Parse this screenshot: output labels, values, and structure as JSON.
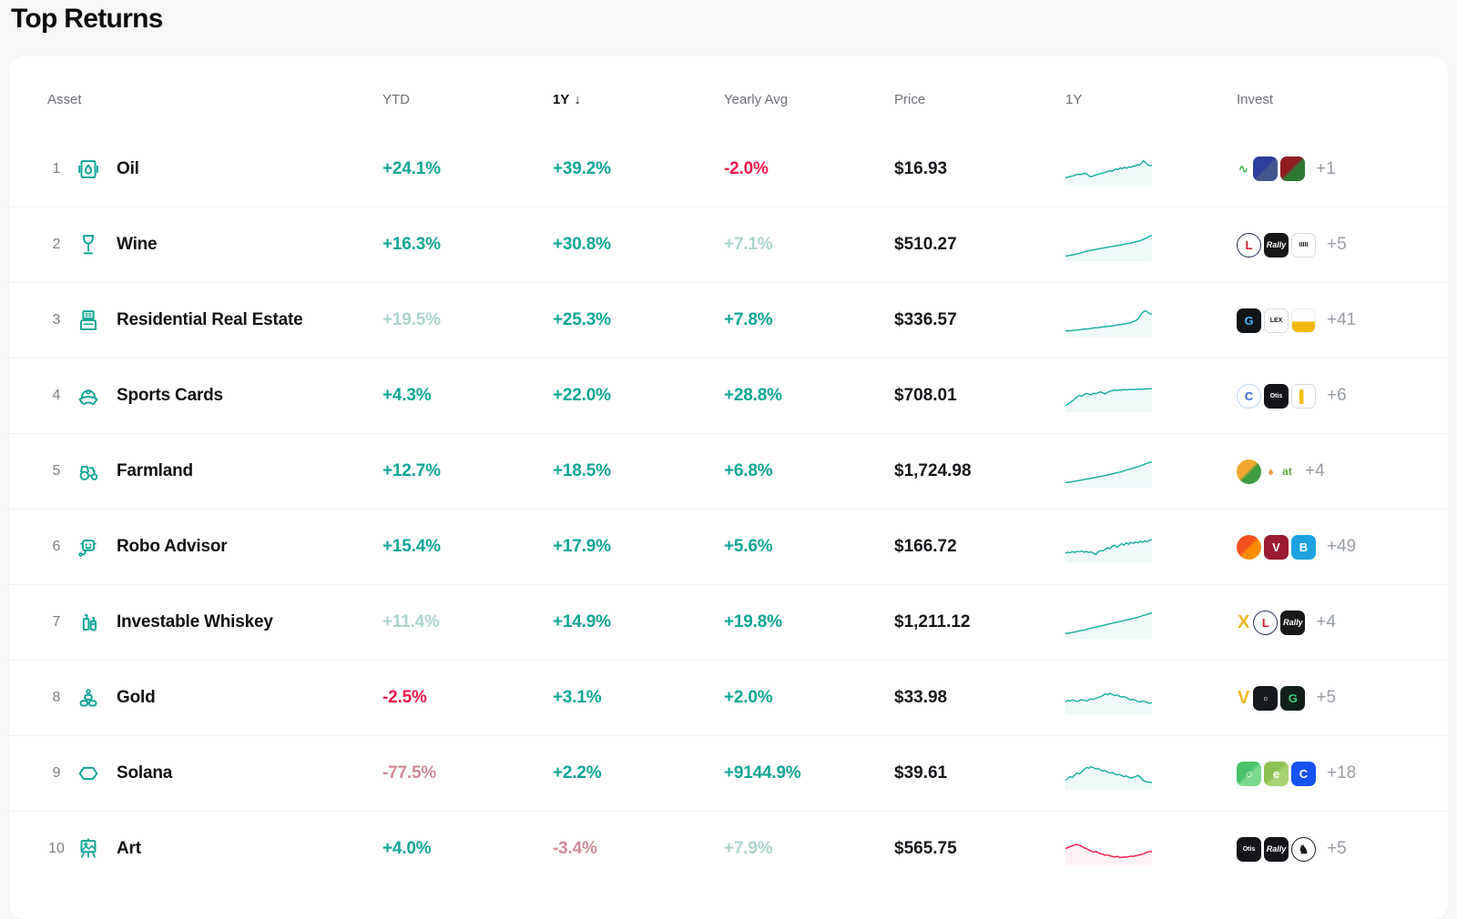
{
  "page": {
    "title": "Top Returns"
  },
  "colors": {
    "accent_positive": "#0FA594",
    "positive_muted": "#ABD4CD",
    "negative": "#F3164A",
    "negative_muted": "#CF8C96",
    "spark_up": "#12AC9C",
    "spark_down": "#F3164A"
  },
  "table": {
    "headers": {
      "asset": "Asset",
      "ytd": "YTD",
      "one_y": "1Y",
      "sort_arrow": "↓",
      "yearly_avg": "Yearly Avg",
      "price": "Price",
      "chart": "1Y",
      "invest": "Invest"
    },
    "rows": [
      {
        "rank": "1",
        "name": "Oil",
        "icon": "oil",
        "ytd": {
          "text": "+24.1%",
          "tone": "pos"
        },
        "one_y": {
          "text": "+39.2%",
          "tone": "pos"
        },
        "yearly_avg": {
          "text": "-2.0%",
          "tone": "neg"
        },
        "price": "$16.93",
        "spark": {
          "trend": "up",
          "points": [
            22,
            24,
            26,
            28,
            30,
            33,
            35,
            34,
            36,
            38,
            37,
            30,
            26,
            28,
            31,
            34,
            36,
            38,
            40,
            43,
            45,
            48,
            46,
            50,
            55,
            52,
            58,
            56,
            60,
            57,
            62,
            60,
            65,
            65,
            70,
            68,
            75,
            85,
            78,
            70,
            66,
            68
          ]
        },
        "invest": {
          "count": "+1",
          "icons": [
            {
              "name": "sparkline-logo",
              "shape": "glyph",
              "fg": "#3cb54a",
              "text": "∿",
              "font": "bold"
            },
            {
              "name": "app-icon-blue",
              "shape": "rounded",
              "bg": "#2e3e9b",
              "bg2": "#44578f",
              "fg": "#cfe04a",
              "text": ""
            },
            {
              "name": "app-icon-red-green",
              "shape": "rounded",
              "bg": "#8f1d22",
              "bg2": "#2f7a33",
              "fg": "#ffffff",
              "text": ""
            }
          ]
        }
      },
      {
        "rank": "2",
        "name": "Wine",
        "icon": "wine",
        "ytd": {
          "text": "+16.3%",
          "tone": "pos"
        },
        "one_y": {
          "text": "+30.8%",
          "tone": "pos"
        },
        "yearly_avg": {
          "text": "+7.1%",
          "tone": "pos-muted"
        },
        "price": "$510.27",
        "spark": {
          "trend": "up",
          "points": [
            12,
            13,
            15,
            16,
            18,
            20,
            22,
            25,
            27,
            30,
            32,
            33,
            35,
            36,
            38,
            40,
            41,
            43,
            44,
            46,
            47,
            49,
            50,
            52,
            53,
            55,
            57,
            58,
            60,
            62,
            64,
            66,
            68,
            72,
            76,
            80,
            85,
            88
          ]
        },
        "invest": {
          "count": "+5",
          "icons": [
            {
              "name": "vinovest-icon",
              "shape": "circle",
              "bg": "#ffffff",
              "border": "#23304f",
              "fg": "#d4222e",
              "text": "L",
              "font": "bold"
            },
            {
              "name": "rally-icon",
              "shape": "rounded",
              "bg": "#17181a",
              "fg": "#ffffff",
              "text": "Rally",
              "font": "script"
            },
            {
              "name": "vint-icon",
              "shape": "rounded",
              "bg": "#ffffff",
              "border": "#d8dbe0",
              "fg": "#17181a",
              "text": "IIIII",
              "font": "tiny"
            }
          ]
        }
      },
      {
        "rank": "3",
        "name": "Residential Real Estate",
        "icon": "building",
        "ytd": {
          "text": "+19.5%",
          "tone": "pos-muted"
        },
        "one_y": {
          "text": "+25.3%",
          "tone": "pos"
        },
        "yearly_avg": {
          "text": "+7.8%",
          "tone": "pos"
        },
        "price": "$336.57",
        "spark": {
          "trend": "up",
          "points": [
            14,
            15,
            15,
            16,
            17,
            18,
            18,
            20,
            21,
            22,
            22,
            24,
            25,
            26,
            26,
            28,
            29,
            30,
            31,
            32,
            33,
            34,
            36,
            37,
            38,
            40,
            41,
            43,
            45,
            48,
            52,
            58,
            70,
            82,
            88,
            84,
            78,
            76
          ]
        },
        "invest": {
          "count": "+41",
          "icons": [
            {
              "name": "groundfloor-icon",
              "shape": "rounded",
              "bg": "#101417",
              "fg": "#3db6f2",
              "text": "G",
              "font": "bold"
            },
            {
              "name": "lex-icon",
              "shape": "rounded",
              "bg": "#ffffff",
              "border": "#d8dbe0",
              "fg": "#17181a",
              "text": "LEX",
              "font": "tiny"
            },
            {
              "name": "realtymogul-icon",
              "shape": "rounded",
              "bg": "#ffffff",
              "bg2": "#f0b90b",
              "dir": "v",
              "border": "#eceef0",
              "fg": "#17181a",
              "text": ""
            }
          ]
        }
      },
      {
        "rank": "4",
        "name": "Sports Cards",
        "icon": "cap",
        "ytd": {
          "text": "+4.3%",
          "tone": "pos"
        },
        "one_y": {
          "text": "+22.0%",
          "tone": "pos"
        },
        "yearly_avg": {
          "text": "+28.8%",
          "tone": "pos"
        },
        "price": "$708.01",
        "spark": {
          "trend": "up",
          "points": [
            18,
            22,
            28,
            35,
            42,
            50,
            55,
            52,
            58,
            62,
            60,
            57,
            63,
            61,
            65,
            68,
            64,
            60,
            66,
            70,
            72,
            74,
            73,
            75,
            74,
            76,
            75,
            76,
            77,
            76,
            77,
            78,
            77,
            78,
            78,
            79,
            79,
            80
          ]
        },
        "invest": {
          "count": "+6",
          "icons": [
            {
              "name": "collectable-icon",
              "shape": "circle",
              "bg": "#ffffff",
              "border": "#bcd4f2",
              "fg": "#2d6bd8",
              "text": "C",
              "font": "bold"
            },
            {
              "name": "otis-icon",
              "shape": "rounded",
              "bg": "#141518",
              "fg": "#ffffff",
              "text": "Otis",
              "font": "tiny"
            },
            {
              "name": "pwcc-icon",
              "shape": "rounded",
              "bg": "#ffffff",
              "border": "#d8dbe0",
              "fg": "#f2c11d",
              "text": "▌",
              "font": "bold"
            }
          ]
        }
      },
      {
        "rank": "5",
        "name": "Farmland",
        "icon": "tractor",
        "ytd": {
          "text": "+12.7%",
          "tone": "pos"
        },
        "one_y": {
          "text": "+18.5%",
          "tone": "pos"
        },
        "yearly_avg": {
          "text": "+6.8%",
          "tone": "pos"
        },
        "price": "$1,724.98",
        "spark": {
          "trend": "up",
          "points": [
            12,
            13,
            14,
            16,
            17,
            19,
            20,
            22,
            23,
            25,
            26,
            28,
            30,
            31,
            33,
            35,
            36,
            38,
            40,
            42,
            44,
            46,
            48,
            50,
            52,
            55,
            58,
            60,
            63,
            66,
            68,
            70,
            73,
            76,
            80,
            83,
            86,
            88
          ]
        },
        "invest": {
          "count": "+4",
          "icons": [
            {
              "name": "farmtogether-icon",
              "shape": "circle",
              "bg": "#f0a92e",
              "bg2": "#3f9b42",
              "fg": "#ffffff",
              "text": ""
            },
            {
              "name": "harvest-icon",
              "shape": "glyph",
              "fg": "#eda24b",
              "text": "♦",
              "font": "bold"
            },
            {
              "name": "acretrader-icon",
              "shape": "glyph",
              "fg": "#65a844",
              "text": "at",
              "font": "boldsmall"
            }
          ]
        }
      },
      {
        "rank": "6",
        "name": "Robo Advisor",
        "icon": "robot",
        "ytd": {
          "text": "+15.4%",
          "tone": "pos"
        },
        "one_y": {
          "text": "+17.9%",
          "tone": "pos"
        },
        "yearly_avg": {
          "text": "+5.6%",
          "tone": "pos"
        },
        "price": "$166.72",
        "spark": {
          "trend": "up",
          "points": [
            30,
            34,
            32,
            36,
            33,
            37,
            35,
            38,
            34,
            36,
            33,
            35,
            30,
            25,
            35,
            40,
            38,
            45,
            50,
            46,
            55,
            60,
            52,
            58,
            65,
            60,
            68,
            63,
            70,
            66,
            72,
            68,
            74,
            70,
            76,
            72,
            78,
            80
          ]
        },
        "invest": {
          "count": "+49",
          "icons": [
            {
              "name": "orange-circle-icon",
              "shape": "circle",
              "bg": "#f4511e",
              "bg2": "#fb8c00",
              "fg": "#ffffff",
              "text": ""
            },
            {
              "name": "v-wine-icon",
              "shape": "rounded",
              "bg": "#9b1b30",
              "fg": "#ffffff",
              "text": "V",
              "font": "bold"
            },
            {
              "name": "betterment-icon",
              "shape": "rounded",
              "bg": "#1da1e0",
              "fg": "#ffffff",
              "text": "B",
              "font": "bold"
            }
          ]
        }
      },
      {
        "rank": "7",
        "name": "Investable Whiskey",
        "icon": "whiskey",
        "ytd": {
          "text": "+11.4%",
          "tone": "pos-muted"
        },
        "one_y": {
          "text": "+14.9%",
          "tone": "pos"
        },
        "yearly_avg": {
          "text": "+19.8%",
          "tone": "pos"
        },
        "price": "$1,211.12",
        "spark": {
          "trend": "up",
          "points": [
            12,
            14,
            15,
            17,
            18,
            20,
            22,
            24,
            25,
            27,
            30,
            32,
            34,
            36,
            38,
            40,
            42,
            44,
            46,
            48,
            50,
            52,
            54,
            56,
            58,
            60,
            62,
            64,
            66,
            68,
            70,
            72,
            75,
            78,
            80,
            83,
            86,
            88
          ]
        },
        "invest": {
          "count": "+4",
          "icons": [
            {
              "name": "caskx-icon",
              "shape": "glyph",
              "fg": "#eab827",
              "text": "X",
              "font": "boldbig"
            },
            {
              "name": "vinovest-icon",
              "shape": "circle",
              "bg": "#ffffff",
              "border": "#23304f",
              "fg": "#d4222e",
              "text": "L",
              "font": "bold"
            },
            {
              "name": "rally-icon",
              "shape": "rounded",
              "bg": "#17181a",
              "fg": "#ffffff",
              "text": "Rally",
              "font": "script"
            }
          ]
        }
      },
      {
        "rank": "8",
        "name": "Gold",
        "icon": "gold",
        "ytd": {
          "text": "-2.5%",
          "tone": "neg"
        },
        "one_y": {
          "text": "+3.1%",
          "tone": "pos"
        },
        "yearly_avg": {
          "text": "+2.0%",
          "tone": "pos"
        },
        "price": "$33.98",
        "spark": {
          "trend": "up",
          "points": [
            40,
            44,
            42,
            46,
            43,
            40,
            44,
            47,
            45,
            42,
            46,
            50,
            48,
            52,
            55,
            58,
            62,
            68,
            65,
            70,
            66,
            62,
            64,
            60,
            56,
            58,
            54,
            50,
            46,
            48,
            44,
            40,
            38,
            42,
            40,
            36,
            34,
            36
          ]
        },
        "invest": {
          "count": "+5",
          "icons": [
            {
              "name": "vaulted-icon",
              "shape": "glyph",
              "fg": "#f5b71e",
              "text": "V",
              "font": "boldbig"
            },
            {
              "name": "onegold-icon",
              "shape": "rounded",
              "bg": "#15181c",
              "fg": "#ffffff",
              "text": "▫",
              "font": "bold"
            },
            {
              "name": "glint-icon",
              "shape": "rounded",
              "bg": "#102019",
              "fg": "#35d07f",
              "text": "G",
              "font": "bold"
            }
          ]
        }
      },
      {
        "rank": "9",
        "name": "Solana",
        "icon": "solana",
        "ytd": {
          "text": "-77.5%",
          "tone": "neg-muted"
        },
        "one_y": {
          "text": "+2.2%",
          "tone": "pos"
        },
        "yearly_avg": {
          "text": "+9144.9%",
          "tone": "pos"
        },
        "price": "$39.61",
        "spark": {
          "trend": "up",
          "points": [
            28,
            35,
            42,
            38,
            48,
            55,
            52,
            60,
            68,
            75,
            72,
            78,
            74,
            70,
            72,
            66,
            62,
            64,
            58,
            55,
            57,
            52,
            48,
            50,
            46,
            42,
            44,
            40,
            36,
            38,
            42,
            46,
            40,
            30,
            24,
            22,
            21,
            20
          ]
        },
        "invest": {
          "count": "+18",
          "icons": [
            {
              "name": "uphold-icon",
              "shape": "rounded",
              "bg": "#49c26b",
              "bg2": "#7bd98c",
              "fg": "#ffffff",
              "text": "○",
              "font": "bold"
            },
            {
              "name": "etoro-icon",
              "shape": "rounded",
              "bg": "#8cc152",
              "bg2": "#a8d373",
              "fg": "#ffffff",
              "text": "e",
              "font": "bold"
            },
            {
              "name": "coinbase-icon",
              "shape": "rounded",
              "bg": "#1652f0",
              "fg": "#ffffff",
              "text": "C",
              "font": "bold"
            }
          ]
        }
      },
      {
        "rank": "10",
        "name": "Art",
        "icon": "art",
        "ytd": {
          "text": "+4.0%",
          "tone": "pos"
        },
        "one_y": {
          "text": "-3.4%",
          "tone": "neg-muted"
        },
        "yearly_avg": {
          "text": "+7.9%",
          "tone": "pos-muted"
        },
        "price": "$565.75",
        "spark": {
          "trend": "down",
          "points": [
            55,
            58,
            62,
            65,
            68,
            70,
            67,
            63,
            58,
            54,
            50,
            46,
            42,
            44,
            40,
            36,
            34,
            30,
            32,
            28,
            26,
            24,
            26,
            23,
            22,
            24,
            23,
            25,
            27,
            26,
            28,
            30,
            32,
            34,
            38,
            42,
            44,
            43
          ]
        },
        "invest": {
          "count": "+5",
          "icons": [
            {
              "name": "otis-icon",
              "shape": "rounded",
              "bg": "#141518",
              "fg": "#ffffff",
              "text": "Otis",
              "font": "tiny"
            },
            {
              "name": "rally-icon",
              "shape": "rounded",
              "bg": "#141518",
              "fg": "#ffffff",
              "text": "Rally",
              "font": "script"
            },
            {
              "name": "stag-icon",
              "shape": "circle",
              "bg": "#ffffff",
              "border": "#17181c",
              "fg": "#17181c",
              "text": "♞",
              "font": "bold"
            }
          ]
        }
      }
    ]
  }
}
